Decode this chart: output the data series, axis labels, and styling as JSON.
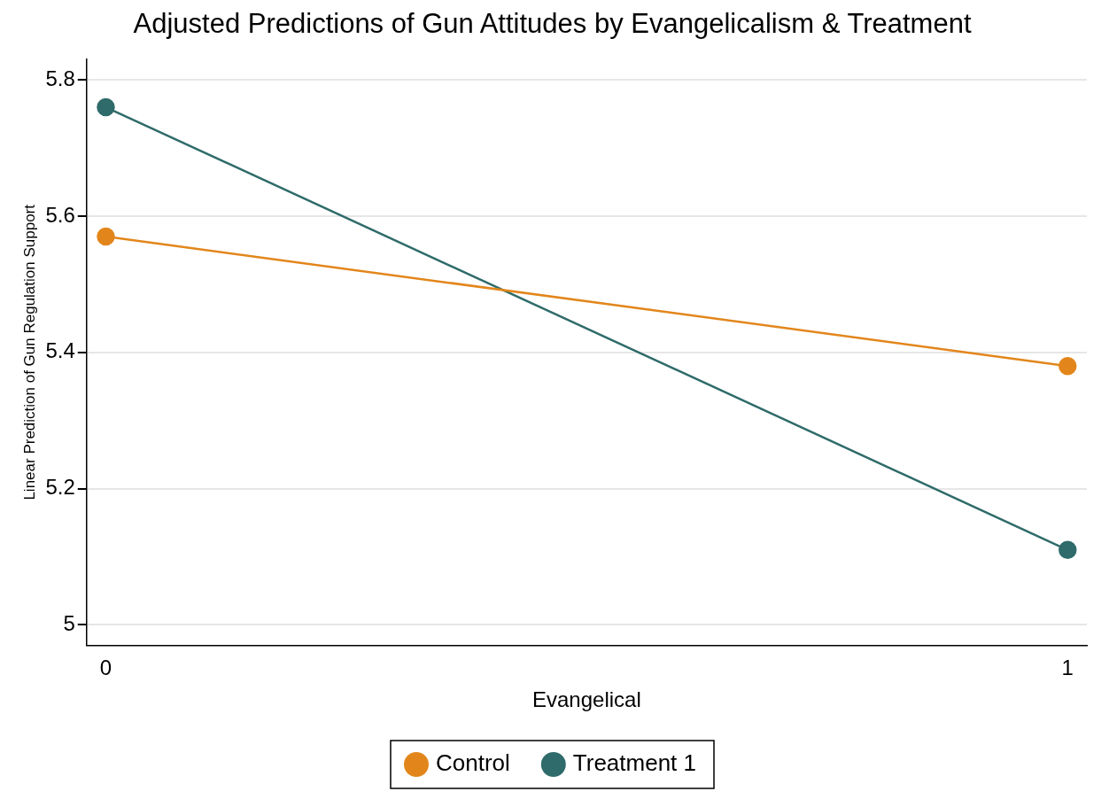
{
  "chart_data": {
    "type": "line",
    "title": "Adjusted Predictions of Gun Attitudes by Evangelicalism & Treatment",
    "xlabel": "Evangelical",
    "ylabel": "Linear Prediction of Gun Regulation Support",
    "x": [
      0,
      1
    ],
    "series": [
      {
        "name": "Control",
        "color": "#e2861b",
        "values": [
          5.57,
          5.38
        ]
      },
      {
        "name": "Treatment 1",
        "color": "#2f6b6a",
        "values": [
          5.76,
          5.11
        ]
      }
    ],
    "xlim": [
      -0.02,
      1.02
    ],
    "xticks": [
      0,
      1
    ],
    "ylim": [
      4.97,
      5.83
    ],
    "yticks": [
      5,
      5.2,
      5.4,
      5.6,
      5.8
    ],
    "grid": "y",
    "legend": "bottom",
    "marker": "circle",
    "line_style": "solid"
  }
}
